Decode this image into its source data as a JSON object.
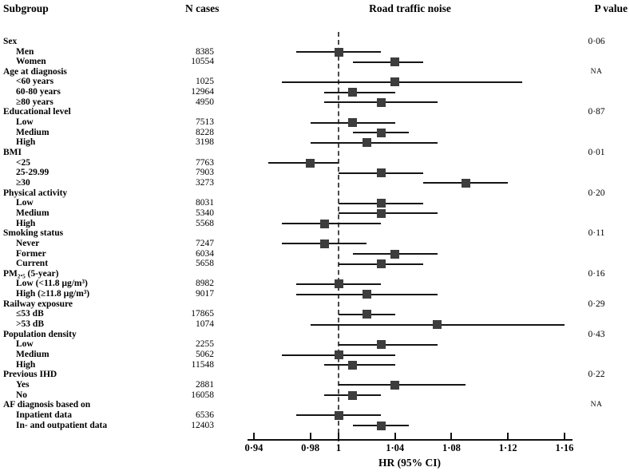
{
  "header": {
    "subgroup": "Subgroup",
    "n_cases": "N cases",
    "plot_title": "Road traffic noise",
    "p_value": "P value"
  },
  "chart_data": {
    "type": "forest",
    "title": "Road traffic noise",
    "xlabel": "HR (95% CI)",
    "xlim": [
      0.94,
      1.16
    ],
    "reference_line": 1.0,
    "x_ticks": [
      {
        "value": 0.94,
        "label": "0·94"
      },
      {
        "value": 0.98,
        "label": "0·98"
      },
      {
        "value": 1.0,
        "label": "1"
      },
      {
        "value": 1.04,
        "label": "1·04"
      },
      {
        "value": 1.08,
        "label": "1·08"
      },
      {
        "value": 1.12,
        "label": "1·12"
      },
      {
        "value": 1.16,
        "label": "1·16"
      }
    ],
    "groups": [
      {
        "label": "Sex",
        "p_value": "0·06",
        "items": [
          {
            "label": "Men",
            "n": "8385",
            "hr": 1.0,
            "lo": 0.97,
            "hi": 1.03
          },
          {
            "label": "Women",
            "n": "10554",
            "hr": 1.04,
            "lo": 1.01,
            "hi": 1.06
          }
        ]
      },
      {
        "label": "Age at diagnosis",
        "p_value": "NA",
        "items": [
          {
            "label": "<60 years",
            "n": "1025",
            "hr": 1.04,
            "lo": 0.96,
            "hi": 1.13
          },
          {
            "label": "60-80 years",
            "n": "12964",
            "hr": 1.01,
            "lo": 0.99,
            "hi": 1.04
          },
          {
            "label": "≥80 years",
            "n": "4950",
            "hr": 1.03,
            "lo": 0.99,
            "hi": 1.07
          }
        ]
      },
      {
        "label": "Educational level",
        "p_value": "0·87",
        "items": [
          {
            "label": "Low",
            "n": "7513",
            "hr": 1.01,
            "lo": 0.98,
            "hi": 1.04
          },
          {
            "label": "Medium",
            "n": "8228",
            "hr": 1.03,
            "lo": 1.01,
            "hi": 1.05
          },
          {
            "label": "High",
            "n": "3198",
            "hr": 1.02,
            "lo": 0.98,
            "hi": 1.07
          }
        ]
      },
      {
        "label": "BMI",
        "p_value": "0·01",
        "items": [
          {
            "label": "<25",
            "n": "7763",
            "hr": 0.98,
            "lo": 0.95,
            "hi": 1.0
          },
          {
            "label": "25-29.99",
            "n": "7903",
            "hr": 1.03,
            "lo": 1.0,
            "hi": 1.06
          },
          {
            "label": "≥30",
            "n": "3273",
            "hr": 1.09,
            "lo": 1.06,
            "hi": 1.12
          }
        ]
      },
      {
        "label": "Physical activity",
        "p_value": "0·20",
        "items": [
          {
            "label": "Low",
            "n": "8031",
            "hr": 1.03,
            "lo": 1.0,
            "hi": 1.06
          },
          {
            "label": "Medium",
            "n": "5340",
            "hr": 1.03,
            "lo": 1.0,
            "hi": 1.07
          },
          {
            "label": "High",
            "n": "5568",
            "hr": 0.99,
            "lo": 0.96,
            "hi": 1.03
          }
        ]
      },
      {
        "label": "Smoking status",
        "p_value": "0·11",
        "items": [
          {
            "label": "Never",
            "n": "7247",
            "hr": 0.99,
            "lo": 0.96,
            "hi": 1.02
          },
          {
            "label": "Former",
            "n": "6034",
            "hr": 1.04,
            "lo": 1.01,
            "hi": 1.07
          },
          {
            "label": "Current",
            "n": "5658",
            "hr": 1.03,
            "lo": 1.0,
            "hi": 1.06
          }
        ]
      },
      {
        "label": "PM₂.₅  (5-year)",
        "p_value": "0·16",
        "items": [
          {
            "label": "Low (<11.8 µg/m³)",
            "n": "8982",
            "hr": 1.0,
            "lo": 0.97,
            "hi": 1.03
          },
          {
            "label": "High (≥11.8 µg/m³)",
            "n": "9017",
            "hr": 1.02,
            "lo": 0.97,
            "hi": 1.07
          }
        ]
      },
      {
        "label": "Railway exposure",
        "p_value": "0·29",
        "items": [
          {
            "label": "≤53 dB",
            "n": "17865",
            "hr": 1.02,
            "lo": 1.0,
            "hi": 1.04
          },
          {
            "label": ">53 dB",
            "n": "1074",
            "hr": 1.07,
            "lo": 0.98,
            "hi": 1.16
          }
        ]
      },
      {
        "label": "Population density",
        "p_value": "0·43",
        "items": [
          {
            "label": "Low",
            "n": "2255",
            "hr": 1.03,
            "lo": 1.0,
            "hi": 1.07
          },
          {
            "label": "Medium",
            "n": "5062",
            "hr": 1.0,
            "lo": 0.96,
            "hi": 1.04
          },
          {
            "label": "High",
            "n": "11548",
            "hr": 1.01,
            "lo": 0.99,
            "hi": 1.04
          }
        ]
      },
      {
        "label": "Previous IHD",
        "p_value": "0·22",
        "items": [
          {
            "label": "Yes",
            "n": "2881",
            "hr": 1.04,
            "lo": 1.0,
            "hi": 1.09
          },
          {
            "label": "No",
            "n": "16058",
            "hr": 1.01,
            "lo": 0.99,
            "hi": 1.03
          }
        ]
      },
      {
        "label": "AF diagnosis based on",
        "p_value": "NA",
        "items": [
          {
            "label": "Inpatient data",
            "n": "6536",
            "hr": 1.0,
            "lo": 0.97,
            "hi": 1.03
          },
          {
            "label": "In- and outpatient data",
            "n": "12403",
            "hr": 1.03,
            "lo": 1.01,
            "hi": 1.05
          }
        ]
      }
    ]
  }
}
